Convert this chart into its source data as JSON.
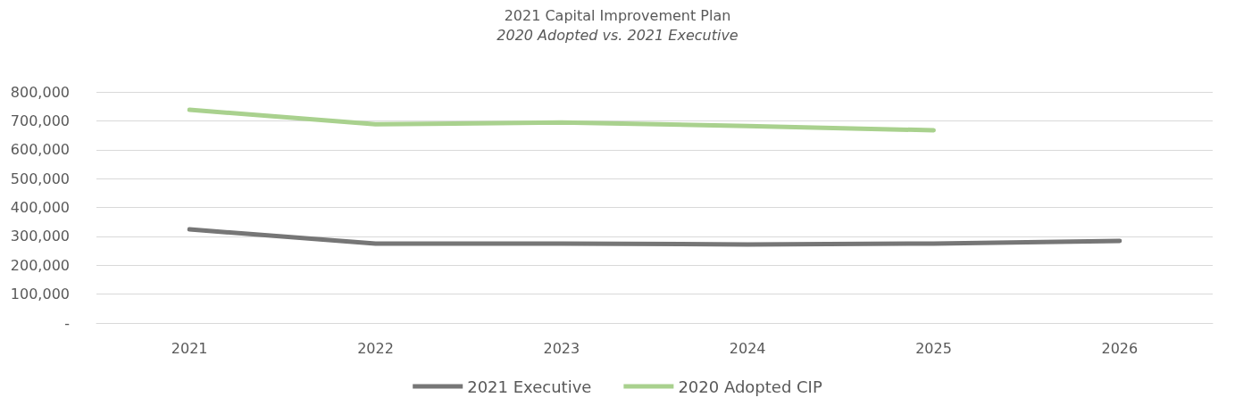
{
  "chart_data": {
    "type": "line",
    "title": "2021 Capital Improvement Plan",
    "subtitle": "2020 Adopted vs. 2021 Executive",
    "categories": [
      "2021",
      "2022",
      "2023",
      "2024",
      "2025",
      "2026"
    ],
    "series": [
      {
        "name": "2021 Executive",
        "color": "#767676",
        "values": [
          324000,
          275000,
          275000,
          272000,
          275000,
          284000
        ]
      },
      {
        "name": "2020 Adopted CIP",
        "color": "#a9d18e",
        "values": [
          738000,
          688000,
          694000,
          682000,
          667000,
          null
        ]
      }
    ],
    "ylim": [
      0,
      800000
    ],
    "yticks": [
      {
        "value": 0,
        "label": "-"
      },
      {
        "value": 100000,
        "label": "100,000"
      },
      {
        "value": 200000,
        "label": "200,000"
      },
      {
        "value": 300000,
        "label": "300,000"
      },
      {
        "value": 400000,
        "label": "400,000"
      },
      {
        "value": 500000,
        "label": "500,000"
      },
      {
        "value": 600000,
        "label": "600,000"
      },
      {
        "value": 700000,
        "label": "700,000"
      },
      {
        "value": 800000,
        "label": "800,000"
      }
    ],
    "grid": "y",
    "legend": "bottom",
    "marker": "none",
    "line_style": "solid"
  }
}
